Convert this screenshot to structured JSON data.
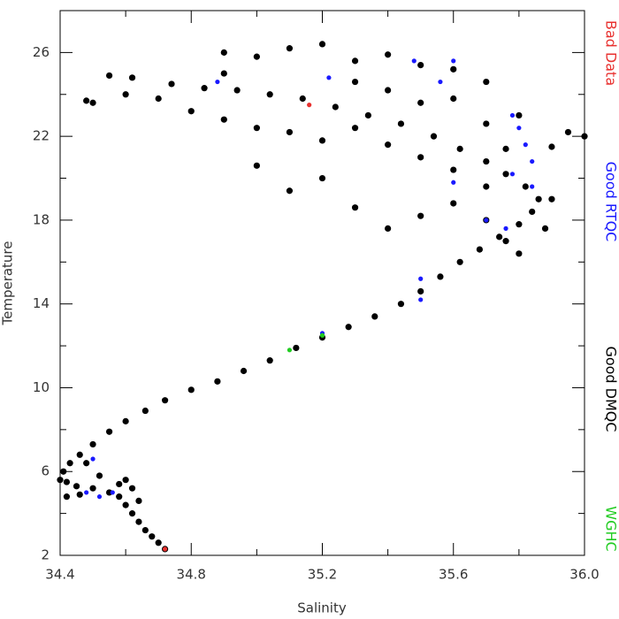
{
  "chart_data": {
    "type": "scatter",
    "x_label": "Salinity",
    "y_label": "Temperature",
    "xlim": [
      34.4,
      36.0
    ],
    "ylim": [
      2,
      28
    ],
    "xticks": [
      34.4,
      34.8,
      35.2,
      35.6,
      {
        "value": 36.0,
        "label": "36.0"
      }
    ],
    "xminor": [
      34.6,
      35.0,
      35.4,
      35.8
    ],
    "yticks": [
      2,
      6,
      10,
      14,
      18,
      22,
      26
    ],
    "yminor": [
      4,
      8,
      12,
      16,
      20,
      24,
      28
    ],
    "series": [
      {
        "name": "Bad Data",
        "color": "#e8312f",
        "x": [
          35.16,
          34.72
        ],
        "y": [
          23.5,
          2.3
        ]
      },
      {
        "name": "Good RTQC",
        "color": "#1a1aff",
        "x": [
          35.78,
          35.8,
          35.82,
          35.84,
          35.78,
          35.56,
          35.6,
          35.48,
          35.22,
          34.88,
          35.84,
          35.7,
          35.76,
          35.5,
          35.2,
          34.5,
          34.56,
          34.52,
          34.48,
          35.6,
          35.5
        ],
        "y": [
          23.0,
          22.4,
          21.6,
          20.8,
          20.2,
          24.6,
          25.6,
          25.6,
          24.8,
          24.6,
          19.6,
          18.0,
          17.6,
          15.2,
          12.6,
          6.6,
          5.0,
          4.8,
          5.0,
          19.8,
          14.2
        ]
      },
      {
        "name": "Good DMQC",
        "color": "#000000",
        "x": [
          34.72,
          34.7,
          34.68,
          34.66,
          34.64,
          34.62,
          34.6,
          34.58,
          34.55,
          34.5,
          34.45,
          34.42,
          34.4,
          34.41,
          34.43,
          34.46,
          34.5,
          34.55,
          34.6,
          34.66,
          34.72,
          34.8,
          34.88,
          34.96,
          35.04,
          35.12,
          35.2,
          35.28,
          35.36,
          35.44,
          35.5,
          35.56,
          35.62,
          35.68,
          35.74,
          35.8,
          35.84,
          35.86,
          35.82,
          35.76,
          35.7,
          35.62,
          35.54,
          35.44,
          35.34,
          35.24,
          35.14,
          35.04,
          34.94,
          34.84,
          34.74,
          34.62,
          34.55,
          34.5,
          34.48,
          34.9,
          35.0,
          35.1,
          35.2,
          35.3,
          35.4,
          35.5,
          35.6,
          35.7,
          35.8,
          35.9,
          36.0,
          35.95,
          35.9,
          35.88,
          35.7,
          35.6,
          35.5,
          35.4,
          35.3,
          35.2,
          35.1,
          35.0,
          34.9,
          35.0,
          35.1,
          35.2,
          35.3,
          35.4,
          35.5,
          35.6,
          35.7,
          35.76,
          35.8,
          35.4,
          35.5,
          35.6,
          35.7,
          35.76,
          34.8,
          34.7,
          34.6,
          34.6,
          34.62,
          34.64,
          34.58,
          34.52,
          34.48,
          34.42,
          34.46,
          34.9,
          35.3
        ],
        "y": [
          2.3,
          2.6,
          2.9,
          3.2,
          3.6,
          4.0,
          4.4,
          4.8,
          5.0,
          5.2,
          5.3,
          5.5,
          5.6,
          6.0,
          6.4,
          6.8,
          7.3,
          7.9,
          8.4,
          8.9,
          9.4,
          9.9,
          10.3,
          10.8,
          11.3,
          11.9,
          12.4,
          12.9,
          13.4,
          14.0,
          14.6,
          15.3,
          16.0,
          16.6,
          17.2,
          17.8,
          18.4,
          19.0,
          19.6,
          20.2,
          20.8,
          21.4,
          22.0,
          22.6,
          23.0,
          23.4,
          23.8,
          24.0,
          24.2,
          24.3,
          24.5,
          24.8,
          24.9,
          23.6,
          23.7,
          26.0,
          25.8,
          26.2,
          26.4,
          25.6,
          25.9,
          25.4,
          25.2,
          24.6,
          23.0,
          21.5,
          22.0,
          22.2,
          19.0,
          17.6,
          19.6,
          20.4,
          21.0,
          21.6,
          22.4,
          21.8,
          22.2,
          22.4,
          22.8,
          20.6,
          19.4,
          20.0,
          18.6,
          17.6,
          18.2,
          18.8,
          18.0,
          17.0,
          16.4,
          24.2,
          23.6,
          23.8,
          22.6,
          21.4,
          23.2,
          23.8,
          24.0,
          5.6,
          5.2,
          4.6,
          5.4,
          5.8,
          6.4,
          4.8,
          4.9,
          25.0,
          24.6
        ]
      },
      {
        "name": "WGHC",
        "color": "#22cc22",
        "x": [
          35.1,
          35.2
        ],
        "y": [
          11.8,
          12.5
        ]
      }
    ]
  }
}
